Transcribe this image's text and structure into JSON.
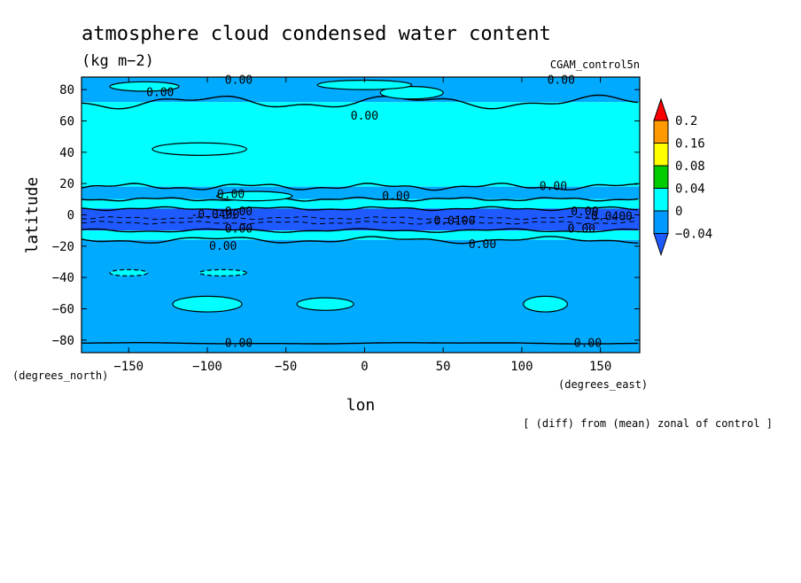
{
  "chart_data": {
    "type": "heatmap",
    "title": "atmosphere cloud condensed water content",
    "units": "(kg m−2)",
    "run_label": "CGAM_control5n",
    "xlabel": "lon",
    "ylabel": "latitude",
    "x_units": "(degrees_east)",
    "y_units": "(degrees_north)",
    "footer": "[ (diff) from (mean) zonal of control ]",
    "xlim": [
      -180,
      175
    ],
    "ylim": [
      -88,
      88
    ],
    "x_ticks": [
      -150,
      -100,
      -50,
      0,
      50,
      100,
      150
    ],
    "y_ticks": [
      80,
      60,
      40,
      20,
      0,
      -20,
      -40,
      -60,
      -80
    ],
    "x_tick_labels": [
      "−150",
      "−100",
      "−50",
      "0",
      "50",
      "100",
      "150"
    ],
    "y_tick_labels": [
      "80",
      "60",
      "40",
      "20",
      "0",
      "−20",
      "−40",
      "−60",
      "−80"
    ],
    "grid": false,
    "legend_position": "right",
    "colorbar": {
      "levels": [
        0.2,
        0.16,
        0.08,
        0.04,
        0,
        -0.04
      ],
      "labels": [
        "0.2",
        "0.16",
        "0.08",
        "0.04",
        "0",
        "−0.04"
      ],
      "colors": [
        "#ff0000",
        "#ff9900",
        "#ffff00",
        "#00cc00",
        "#00ffff",
        "#0099ff",
        "#1e5aff"
      ]
    },
    "zonal_bands": [
      {
        "lat": [
          72,
          88
        ],
        "value": "-0.04 to 0"
      },
      {
        "lat": [
          18,
          72
        ],
        "value": "0 to 0.04"
      },
      {
        "lat": [
          10,
          18
        ],
        "value": "-0.04 to 0"
      },
      {
        "lat": [
          4,
          10
        ],
        "value": "0 to 0.04"
      },
      {
        "lat": [
          -10,
          4
        ],
        "value": "< -0.04"
      },
      {
        "lat": [
          -16,
          -10
        ],
        "value": "0 to 0.04"
      },
      {
        "lat": [
          -88,
          -16
        ],
        "value": "-0.04 to 0"
      }
    ],
    "contour_labels": [
      "0.00",
      "-0.0400",
      "-0.0100"
    ]
  }
}
